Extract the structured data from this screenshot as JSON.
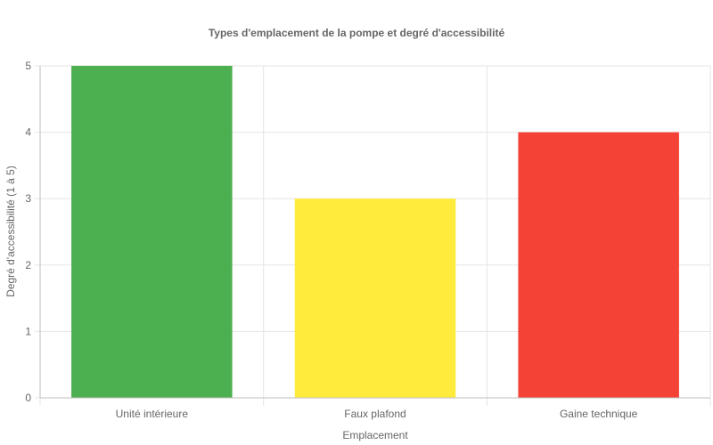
{
  "chart_data": {
    "type": "bar",
    "title": "Types d'emplacement de la pompe et degré d'accessibilité",
    "xlabel": "Emplacement",
    "ylabel": "Degré d'accessibilité (1 à 5)",
    "categories": [
      "Unité intérieure",
      "Faux plafond",
      "Gaine technique"
    ],
    "values": [
      5,
      3,
      4
    ],
    "colors": [
      "#4caf50",
      "#ffeb3b",
      "#f44336"
    ],
    "ylim": [
      0,
      5
    ],
    "yticks": [
      0,
      1,
      2,
      3,
      4,
      5
    ],
    "grid": true,
    "legend": "none"
  }
}
